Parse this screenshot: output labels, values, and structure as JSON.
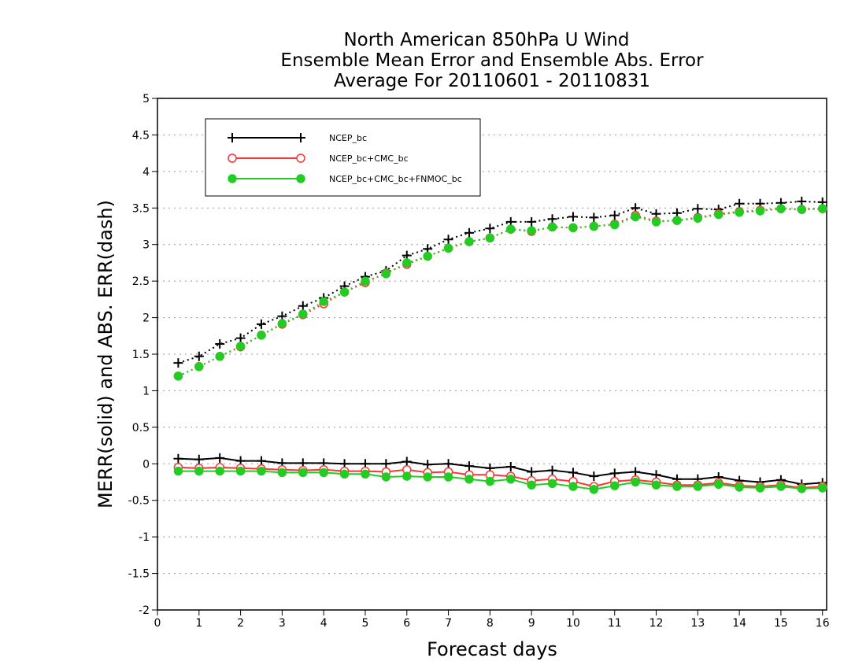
{
  "chart_data": {
    "type": "line",
    "title_lines": [
      "North American 850hPa U Wind",
      "Ensemble Mean Error and Ensemble Abs. Error",
      "Average For 20110601 - 20110831"
    ],
    "xlabel": "Forecast days",
    "ylabel": "MERR(solid) and ABS. ERR(dash)",
    "xlim": [
      0,
      16.1
    ],
    "ylim": [
      -2,
      5
    ],
    "xticks": [
      "0",
      "1",
      "2",
      "3",
      "4",
      "5",
      "6",
      "7",
      "8",
      "9",
      "10",
      "11",
      "12",
      "13",
      "14",
      "15",
      "16"
    ],
    "yticks": [
      "5",
      "4.5",
      "4",
      "3.5",
      "3",
      "2.5",
      "2",
      "1.5",
      "1",
      "0.5",
      "0",
      "-0.5",
      "-1",
      "-1.5",
      "-2"
    ],
    "grid": "horizontal dotted",
    "legend_position": "top-left",
    "x": [
      0.5,
      1,
      1.5,
      2,
      2.5,
      3,
      3.5,
      4,
      4.5,
      5,
      5.5,
      6,
      6.5,
      7,
      7.5,
      8,
      8.5,
      9,
      9.5,
      10,
      10.5,
      11,
      11.5,
      12,
      12.5,
      13,
      13.5,
      14,
      14.5,
      15,
      15.5,
      16
    ],
    "series": [
      {
        "name": "NCEP_bc",
        "color": "#000000",
        "marker": "plus",
        "merr": [
          0.07,
          0.06,
          0.08,
          0.04,
          0.04,
          0.01,
          0.01,
          0.01,
          0.0,
          0.0,
          0.0,
          0.03,
          -0.01,
          0.0,
          -0.03,
          -0.06,
          -0.04,
          -0.11,
          -0.09,
          -0.12,
          -0.17,
          -0.13,
          -0.11,
          -0.15,
          -0.21,
          -0.21,
          -0.18,
          -0.23,
          -0.25,
          -0.22,
          -0.28,
          -0.26
        ],
        "abs_err": [
          1.38,
          1.47,
          1.64,
          1.72,
          1.91,
          2.02,
          2.16,
          2.27,
          2.43,
          2.56,
          2.64,
          2.85,
          2.94,
          3.07,
          3.16,
          3.22,
          3.31,
          3.31,
          3.35,
          3.38,
          3.37,
          3.4,
          3.5,
          3.42,
          3.43,
          3.49,
          3.48,
          3.56,
          3.56,
          3.57,
          3.59,
          3.58
        ]
      },
      {
        "name": "NCEP_bc+CMC_bc",
        "color": "#ff3333",
        "marker": "open-circle",
        "merr": [
          -0.05,
          -0.06,
          -0.05,
          -0.06,
          -0.07,
          -0.08,
          -0.09,
          -0.08,
          -0.1,
          -0.1,
          -0.11,
          -0.08,
          -0.12,
          -0.11,
          -0.15,
          -0.15,
          -0.17,
          -0.23,
          -0.21,
          -0.24,
          -0.31,
          -0.24,
          -0.22,
          -0.25,
          -0.29,
          -0.29,
          -0.26,
          -0.3,
          -0.31,
          -0.29,
          -0.33,
          -0.31
        ],
        "abs_err": [
          1.2,
          1.33,
          1.47,
          1.6,
          1.76,
          1.91,
          2.04,
          2.19,
          2.35,
          2.48,
          2.61,
          2.73,
          2.84,
          2.95,
          3.04,
          3.09,
          3.21,
          3.18,
          3.24,
          3.23,
          3.25,
          3.28,
          3.4,
          3.32,
          3.33,
          3.37,
          3.42,
          3.45,
          3.47,
          3.49,
          3.48,
          3.49
        ]
      },
      {
        "name": "NCEP_bc+CMC_bc+FNMOC_bc",
        "color": "#22cc22",
        "marker": "filled-circle",
        "merr": [
          -0.1,
          -0.1,
          -0.1,
          -0.1,
          -0.1,
          -0.12,
          -0.12,
          -0.12,
          -0.14,
          -0.14,
          -0.18,
          -0.17,
          -0.18,
          -0.18,
          -0.21,
          -0.24,
          -0.21,
          -0.29,
          -0.27,
          -0.31,
          -0.35,
          -0.3,
          -0.25,
          -0.29,
          -0.31,
          -0.31,
          -0.28,
          -0.32,
          -0.33,
          -0.31,
          -0.34,
          -0.33
        ],
        "abs_err": [
          1.2,
          1.33,
          1.47,
          1.61,
          1.76,
          1.92,
          2.05,
          2.22,
          2.35,
          2.5,
          2.6,
          2.75,
          2.84,
          2.95,
          3.04,
          3.09,
          3.21,
          3.19,
          3.24,
          3.23,
          3.25,
          3.27,
          3.38,
          3.31,
          3.33,
          3.36,
          3.41,
          3.44,
          3.46,
          3.49,
          3.48,
          3.49
        ]
      }
    ]
  }
}
